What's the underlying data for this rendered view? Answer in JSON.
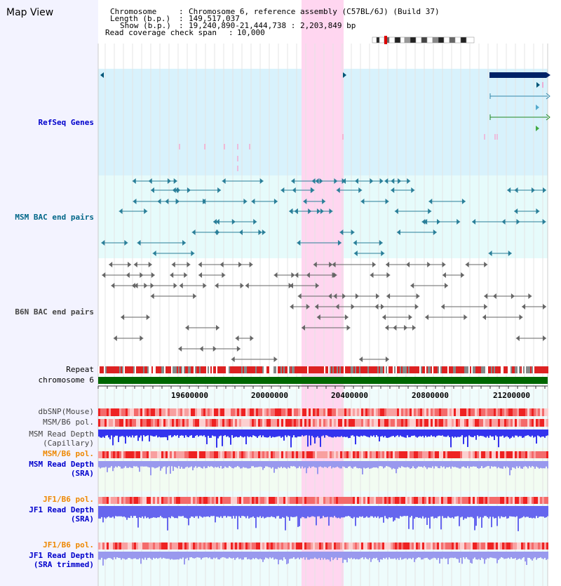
{
  "title": "Map View",
  "info": {
    "chromosome_label": "Chromosome",
    "chromosome_value": "Chromosome 6, reference assembly (C57BL/6J) (Build 37)",
    "length_label": "Length (b.p.)",
    "length_value": "149,517,037",
    "show_label": "Show (b.p.)",
    "show_value": "19,240,890-21,444,738 : 2,203,849 bp",
    "span_label": "Read coverage check span",
    "span_value": "10,000"
  },
  "tracks": {
    "refseq": "RefSeq Genes",
    "msm_bac": "MSM BAC end pairs",
    "b6n_bac": "B6N BAC end pairs",
    "repeat": "Repeat",
    "chromosome": "chromosome 6",
    "dbsnp": "dbSNP(Mouse)",
    "msm_b6_pol_1": "MSM/B6 pol.",
    "msm_depth_cap_1": "MSM Read Depth",
    "msm_depth_cap_2": "(Capillary)",
    "msm_b6_pol_2": "MSM/B6 pol.",
    "msm_depth_sra_1": "MSM Read Depth",
    "msm_depth_sra_2": "(SRA)",
    "jf1_b6_pol_1": "JF1/B6 pol.",
    "jf1_depth_sra_1": "JF1 Read Depth",
    "jf1_depth_sra_2": "(SRA)",
    "jf1_b6_pol_2": "JF1/B6 pol.",
    "jf1_depth_trim_1": "JF1 Read Depth",
    "jf1_depth_trim_2": "(SRA trimmed)"
  },
  "axis_ticks": [
    "19600000",
    "20000000",
    "20400000",
    "20800000",
    "21200000"
  ],
  "colors": {
    "refseq_label": "#0000cc",
    "msm_label": "#006688",
    "b6n_label": "#444444",
    "orange_label": "#ee8800",
    "blue_label": "#0000cc",
    "highlight": "#ffccee"
  }
}
